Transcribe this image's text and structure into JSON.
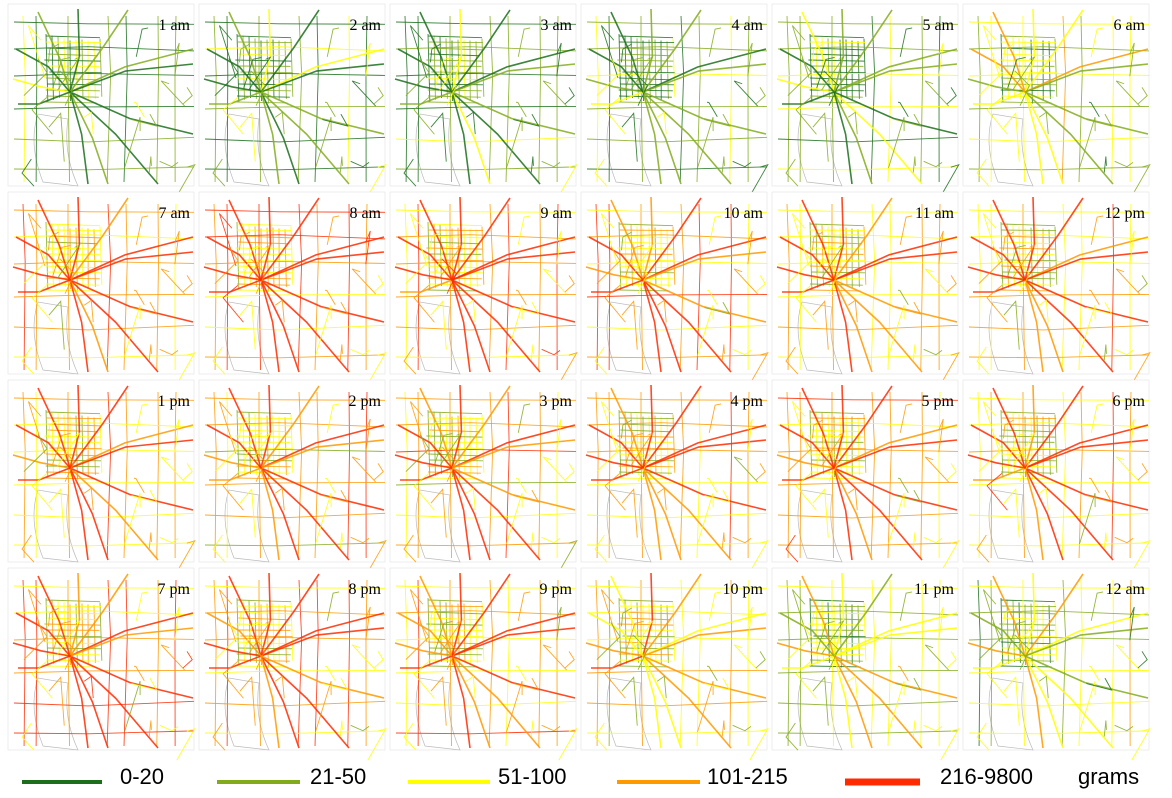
{
  "panels": [
    "1 am",
    "2 am",
    "3 am",
    "4 am",
    "5 am",
    "6 am",
    "7 am",
    "8 am",
    "9 am",
    "10 am",
    "11 am",
    "12 pm",
    "1 pm",
    "2 pm",
    "3 pm",
    "4 pm",
    "5 pm",
    "6 pm",
    "7 pm",
    "8 pm",
    "9 pm",
    "10 pm",
    "11 pm",
    "12 am"
  ],
  "legend": {
    "items": [
      {
        "label": "0-20",
        "color": "#1b6e1b"
      },
      {
        "label": "21-50",
        "color": "#82ab1c"
      },
      {
        "label": "51-100",
        "color": "#ffff00"
      },
      {
        "label": "101-215",
        "color": "#ff9900"
      },
      {
        "label": "216-9800",
        "color": "#ff2a00"
      }
    ],
    "unit": "grams"
  }
}
